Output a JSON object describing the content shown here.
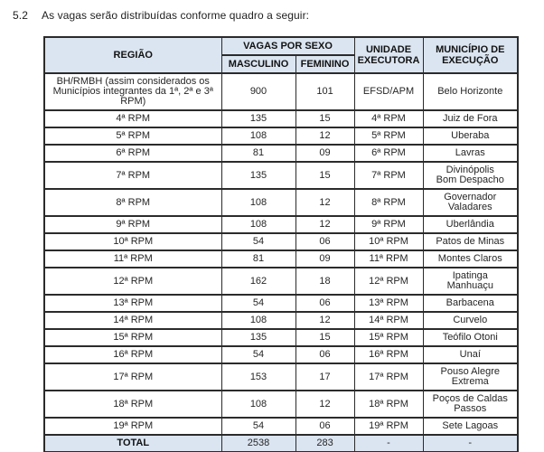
{
  "section": {
    "number": "5.2",
    "text": "As vagas serão distribuídas conforme quadro a seguir:"
  },
  "colors": {
    "header_bg": "#dbe5f1",
    "border": "#2b2b2b",
    "text": "#262626"
  },
  "table": {
    "headers": {
      "regiao": "REGIÃO",
      "vagas_por_sexo": "VAGAS POR SEXO",
      "masculino": "MASCULINO",
      "feminino": "FEMININO",
      "unidade_executora": "UNIDADE EXECUTORA",
      "municipio_execucao": "MUNICÍPIO DE EXECUÇÃO"
    },
    "rows": [
      {
        "regiao": "BH/RMBH (assim considerados os Municípios integrantes da 1ª, 2ª e 3ª RPM)",
        "masculino": "900",
        "feminino": "101",
        "unidade": "EFSD/APM",
        "municipio": "Belo Horizonte"
      },
      {
        "regiao": "4ª RPM",
        "masculino": "135",
        "feminino": "15",
        "unidade": "4ª RPM",
        "municipio": "Juiz de Fora"
      },
      {
        "regiao": "5ª RPM",
        "masculino": "108",
        "feminino": "12",
        "unidade": "5ª RPM",
        "municipio": "Uberaba"
      },
      {
        "regiao": "6ª RPM",
        "masculino": "81",
        "feminino": "09",
        "unidade": "6ª RPM",
        "municipio": "Lavras"
      },
      {
        "regiao": "7ª RPM",
        "masculino": "135",
        "feminino": "15",
        "unidade": "7ª RPM",
        "municipio": "Divinópolis\nBom Despacho"
      },
      {
        "regiao": "8ª RPM",
        "masculino": "108",
        "feminino": "12",
        "unidade": "8ª RPM",
        "municipio": "Governador\nValadares"
      },
      {
        "regiao": "9ª RPM",
        "masculino": "108",
        "feminino": "12",
        "unidade": "9ª RPM",
        "municipio": "Uberlândia"
      },
      {
        "regiao": "10ª RPM",
        "masculino": "54",
        "feminino": "06",
        "unidade": "10ª RPM",
        "municipio": "Patos de Minas"
      },
      {
        "regiao": "11ª RPM",
        "masculino": "81",
        "feminino": "09",
        "unidade": "11ª RPM",
        "municipio": "Montes Claros"
      },
      {
        "regiao": "12ª RPM",
        "masculino": "162",
        "feminino": "18",
        "unidade": "12ª RPM",
        "municipio": "Ipatinga\nManhuaçu"
      },
      {
        "regiao": "13ª RPM",
        "masculino": "54",
        "feminino": "06",
        "unidade": "13ª RPM",
        "municipio": "Barbacena"
      },
      {
        "regiao": "14ª RPM",
        "masculino": "108",
        "feminino": "12",
        "unidade": "14ª RPM",
        "municipio": "Curvelo"
      },
      {
        "regiao": "15ª RPM",
        "masculino": "135",
        "feminino": "15",
        "unidade": "15ª RPM",
        "municipio": "Teófilo Otoni"
      },
      {
        "regiao": "16ª RPM",
        "masculino": "54",
        "feminino": "06",
        "unidade": "16ª RPM",
        "municipio": "Unaí"
      },
      {
        "regiao": "17ª RPM",
        "masculino": "153",
        "feminino": "17",
        "unidade": "17ª RPM",
        "municipio": "Pouso Alegre\nExtrema"
      },
      {
        "regiao": "18ª RPM",
        "masculino": "108",
        "feminino": "12",
        "unidade": "18ª RPM",
        "municipio": "Poços de Caldas\nPassos"
      },
      {
        "regiao": "19ª RPM",
        "masculino": "54",
        "feminino": "06",
        "unidade": "19ª RPM",
        "municipio": "Sete Lagoas"
      }
    ],
    "total": {
      "regiao": "TOTAL",
      "masculino": "2538",
      "feminino": "283",
      "unidade": "-",
      "municipio": "-"
    }
  }
}
